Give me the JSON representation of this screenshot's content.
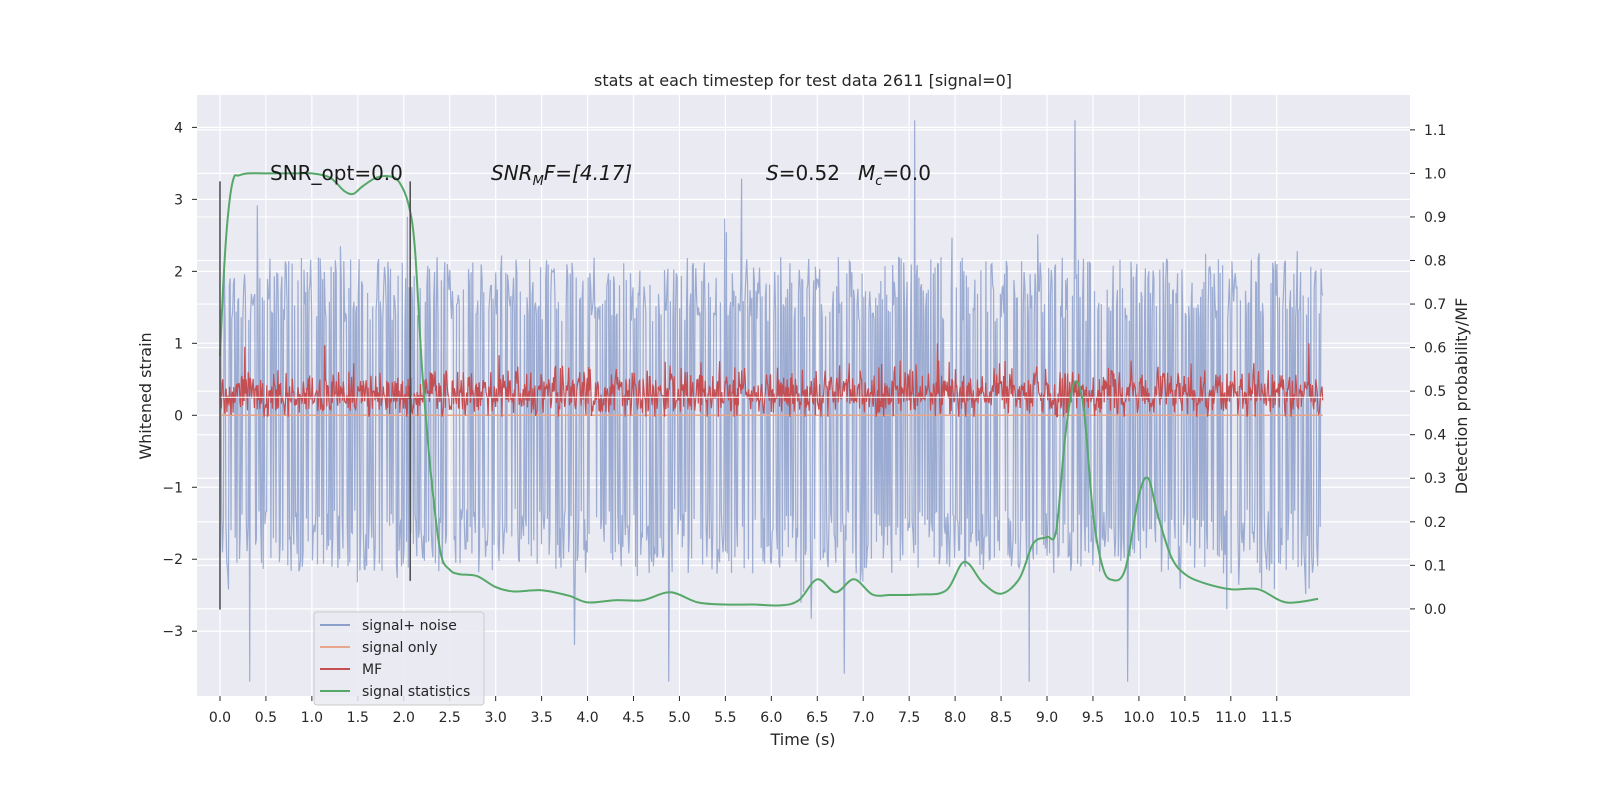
{
  "chart_data": {
    "type": "line",
    "title": "stats at each timestep for test data 2611 [signal=0]",
    "xlabel": "Time (s)",
    "ylabel_left": "Whitened strain",
    "ylabel_right": "Detection probability/MF",
    "xlim": [
      -0.25,
      12.95
    ],
    "ylim_left": [
      -3.9,
      4.45
    ],
    "ylim_right": [
      -0.2,
      1.18
    ],
    "x_ticks": [
      0.0,
      0.5,
      1.0,
      1.5,
      2.0,
      2.5,
      3.0,
      3.5,
      4.0,
      4.5,
      5.0,
      5.5,
      6.0,
      6.5,
      7.0,
      7.5,
      8.0,
      8.5,
      9.0,
      9.5,
      10.0,
      10.5,
      11.0,
      11.5
    ],
    "x_tick_labels": [
      "0.0",
      "0.5",
      "1.0",
      "1.5",
      "2.0",
      "2.5",
      "3.0",
      "3.5",
      "4.0",
      "4.5",
      "5.0",
      "5.5",
      "6.0",
      "6.5",
      "7.0",
      "7.5",
      "8.0",
      "8.5",
      "9.0",
      "9.5",
      "10.0",
      "10.5",
      "11.0",
      "11.5"
    ],
    "y_left_ticks": [
      -3,
      -2,
      -1,
      0,
      1,
      2,
      3,
      4
    ],
    "y_left_tick_labels": [
      "−3",
      "−2",
      "−1",
      "0",
      "1",
      "2",
      "3",
      "4"
    ],
    "y_right_ticks": [
      0.0,
      0.1,
      0.2,
      0.3,
      0.4,
      0.5,
      0.6,
      0.7,
      0.8,
      0.9,
      1.0,
      1.1
    ],
    "y_right_tick_labels": [
      "0.0",
      "0.1",
      "0.2",
      "0.3",
      "0.4",
      "0.5",
      "0.6",
      "0.7",
      "0.8",
      "0.9",
      "1.0",
      "1.1"
    ],
    "grid": true,
    "legend_position": "bottom-left",
    "series": [
      {
        "name": "signal+ noise",
        "color": "#8da0cb",
        "axis": "left",
        "range": [
          -2.3,
          2.3
        ],
        "peak_range": [
          -3.7,
          4.1
        ],
        "x_range": [
          0.0,
          12.0
        ]
      },
      {
        "name": "signal only",
        "color": "#e8a58a",
        "axis": "left",
        "value": 0.0
      },
      {
        "name": "MF",
        "color": "#c44e52",
        "axis": "left",
        "range": [
          0.0,
          0.7
        ],
        "x_range": [
          0.0,
          12.0
        ]
      },
      {
        "name": "signal statistics",
        "color": "#55a868",
        "axis": "right",
        "x": [
          0.0,
          0.05,
          0.1,
          0.15,
          0.2,
          0.3,
          0.5,
          0.8,
          1.0,
          1.2,
          1.35,
          1.45,
          1.55,
          1.7,
          1.85,
          1.95,
          2.05,
          2.12,
          2.2,
          2.3,
          2.4,
          2.5,
          2.6,
          2.8,
          3.0,
          3.2,
          3.5,
          3.8,
          4.0,
          4.3,
          4.6,
          4.9,
          5.2,
          5.5,
          5.8,
          6.1,
          6.3,
          6.5,
          6.7,
          6.9,
          7.1,
          7.3,
          7.6,
          7.9,
          8.1,
          8.3,
          8.5,
          8.7,
          8.85,
          9.0,
          9.1,
          9.2,
          9.3,
          9.4,
          9.5,
          9.6,
          9.7,
          9.85,
          10.0,
          10.1,
          10.2,
          10.35,
          10.5,
          10.7,
          11.0,
          11.3,
          11.6,
          11.95
        ],
        "values": [
          0.58,
          0.8,
          0.93,
          0.99,
          0.995,
          1.0,
          1.0,
          1.0,
          1.0,
          0.99,
          0.96,
          0.953,
          0.97,
          0.99,
          0.993,
          0.98,
          0.93,
          0.83,
          0.55,
          0.3,
          0.13,
          0.09,
          0.08,
          0.075,
          0.05,
          0.04,
          0.043,
          0.03,
          0.015,
          0.02,
          0.02,
          0.038,
          0.015,
          0.01,
          0.01,
          0.008,
          0.02,
          0.068,
          0.038,
          0.068,
          0.033,
          0.032,
          0.033,
          0.042,
          0.108,
          0.06,
          0.035,
          0.07,
          0.15,
          0.165,
          0.18,
          0.4,
          0.52,
          0.46,
          0.22,
          0.1,
          0.067,
          0.09,
          0.26,
          0.3,
          0.22,
          0.12,
          0.08,
          0.06,
          0.045,
          0.045,
          0.015,
          0.023
        ]
      }
    ],
    "vertical_lines": [
      {
        "x": 0.0,
        "ymin": -2.7,
        "ymax": 3.25,
        "color": "#4a4a4a"
      },
      {
        "x": 2.07,
        "ymin": -2.3,
        "ymax": 3.25,
        "color": "#4a4a4a"
      }
    ],
    "annotations": {
      "snr_opt": "SNR_opt=0.0",
      "snr_mf_name": "SNR",
      "snr_mf_sub": "M",
      "snr_mf_rest": "F=[4.17]",
      "s_name": "S",
      "s_value": "=0.52",
      "mc_name": "M",
      "mc_sub": "c",
      "mc_value": "=0.0"
    }
  }
}
